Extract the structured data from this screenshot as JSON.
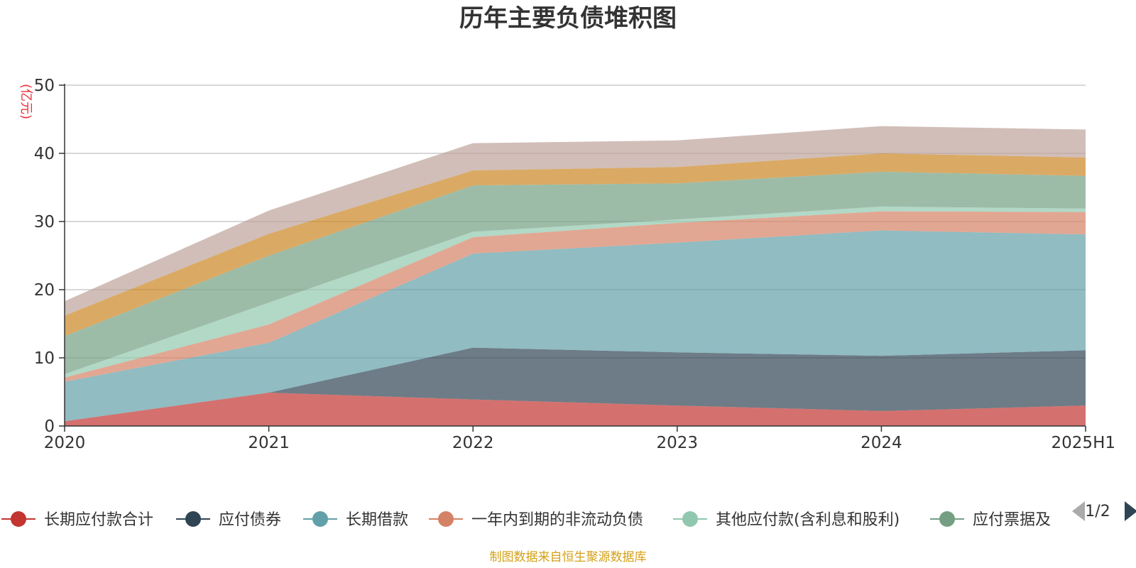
{
  "chart_data": {
    "type": "area",
    "stacked": true,
    "title": "历年主要负债堆积图",
    "ylabel": "(亿元)",
    "categories": [
      "2020",
      "2021",
      "2022",
      "2023",
      "2024",
      "2025H1"
    ],
    "ylim": [
      0,
      50
    ],
    "yticks": [
      0,
      10,
      20,
      30,
      40,
      50
    ],
    "grid": true,
    "series": [
      {
        "name": "长期应付款合计",
        "color": "#c23531",
        "legend_color": "#c23531",
        "values": [
          0.7,
          4.9,
          3.9,
          3.0,
          2.2,
          3.0
        ]
      },
      {
        "name": "应付债券",
        "color": "#2f4554",
        "legend_color": "#2f4554",
        "values": [
          0.0,
          0.0,
          7.6,
          7.8,
          8.1,
          8.1
        ]
      },
      {
        "name": "长期借款",
        "color": "#61a0a8",
        "legend_color": "#61a0a8",
        "values": [
          5.8,
          7.3,
          13.8,
          16.1,
          18.4,
          17.0
        ]
      },
      {
        "name": "一年内到期的非流动负债",
        "color": "#d48265",
        "legend_color": "#d48265",
        "values": [
          0.6,
          2.7,
          2.4,
          2.9,
          2.8,
          3.3
        ]
      },
      {
        "name": "其他应付款(含利息和股利)",
        "color": "#91c7ae",
        "legend_color": "#91c7ae",
        "values": [
          0.5,
          3.2,
          0.8,
          0.5,
          0.7,
          0.5
        ]
      },
      {
        "name": "应付票据及应付账款",
        "color": "#749f83",
        "legend_color": "#749f83",
        "values": [
          5.6,
          6.9,
          6.8,
          5.3,
          5.1,
          4.8
        ]
      },
      {
        "name": "",
        "color": "#ca8622",
        "values": [
          3.0,
          3.2,
          2.2,
          2.4,
          2.7,
          2.7
        ]
      },
      {
        "name": "",
        "color": "#bda29a",
        "values": [
          2.1,
          3.4,
          4.0,
          3.9,
          4.0,
          4.1
        ]
      }
    ],
    "legend": {
      "position": "bottom",
      "visible_items": [
        "长期应付款合计",
        "应付债券",
        "长期借款",
        "一年内到期的非流动负债",
        "其他应付款(含利息和股利)",
        "应付票据及"
      ],
      "page": "1/2"
    },
    "source": "制图数据来自恒生聚源数据库"
  }
}
